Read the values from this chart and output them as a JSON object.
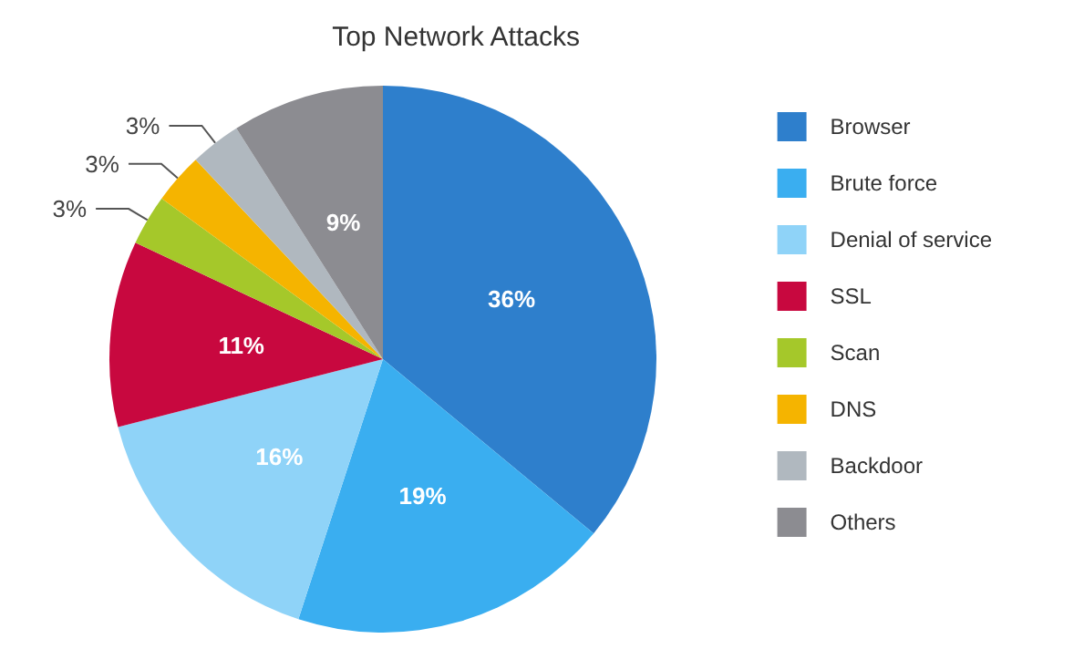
{
  "chart_data": {
    "type": "pie",
    "title": "Top Network Attacks",
    "categories": [
      "Browser",
      "Brute force",
      "Denial of service",
      "SSL",
      "Scan",
      "DNS",
      "Backdoor",
      "Others"
    ],
    "values": [
      36,
      19,
      16,
      11,
      3,
      3,
      3,
      9
    ],
    "value_labels": [
      "36%",
      "19%",
      "16%",
      "11%",
      "3%",
      "3%",
      "3%",
      "9%"
    ],
    "colors": [
      "#2e7fcc",
      "#3aaef0",
      "#8fd3f8",
      "#c8083f",
      "#a5c82a",
      "#f5b400",
      "#b0b8bf",
      "#8c8c91"
    ],
    "legend": "right"
  }
}
